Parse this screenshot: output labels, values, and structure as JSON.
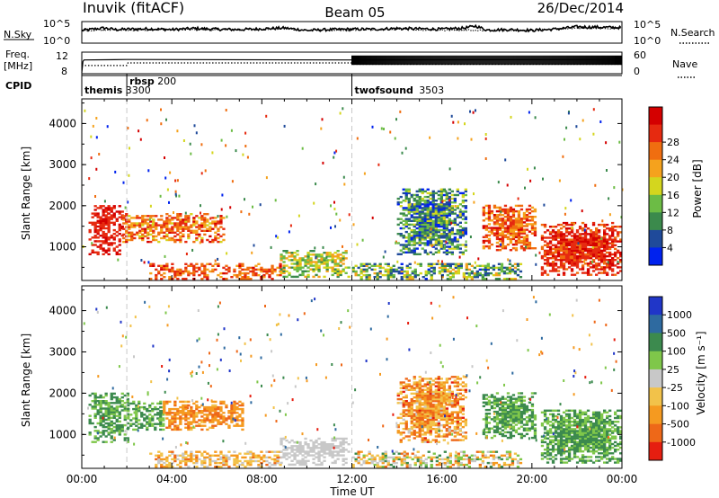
{
  "chart_data": [
    {
      "type": "line",
      "panel": "noise",
      "title": "Inuvik (fitACF)",
      "beam_label": "Beam 05",
      "date_label": "26/Dec/2014",
      "ylabel": "N.Sky",
      "ytick_left": [
        "10^5",
        "10^0"
      ],
      "ytick_right": [
        "10^5",
        "10^0"
      ],
      "right_label": "N.Search",
      "series": [
        {
          "name": "N.Sky",
          "style": "solid",
          "x_hours": [
            0,
            0.5,
            1,
            1.5,
            2,
            3,
            4,
            5,
            6,
            7,
            8,
            9,
            10,
            11,
            12,
            13,
            14,
            15,
            16,
            17,
            17.5,
            18,
            19,
            20,
            21,
            22,
            23,
            24
          ],
          "values_log10": [
            3.0,
            3.3,
            3.6,
            3.2,
            3.3,
            3.4,
            3.2,
            3.5,
            3.3,
            3.2,
            3.4,
            3.6,
            3.0,
            3.2,
            3.3,
            3.3,
            3.5,
            3.4,
            3.3,
            3.6,
            4.1,
            3.1,
            3.2,
            3.0,
            3.3,
            3.9,
            3.8,
            3.7
          ]
        },
        {
          "name": "N.Search",
          "style": "dotted",
          "x_hours": [
            0,
            1,
            2,
            4,
            6,
            8,
            9,
            10,
            12,
            14,
            16,
            18,
            20,
            22,
            24
          ],
          "values_log10": [
            2.9,
            3.2,
            3.0,
            3.2,
            3.1,
            3.2,
            3.4,
            3.0,
            3.1,
            3.3,
            3.1,
            3.0,
            3.1,
            3.5,
            3.5
          ]
        }
      ]
    },
    {
      "type": "line",
      "panel": "frequency",
      "ylabel_top": "Freq.",
      "ylabel_bottom": "[MHz]",
      "ytick_left": [
        "12",
        "8"
      ],
      "ytick_right": [
        "60",
        "0"
      ],
      "right_label": "Nave",
      "series": [
        {
          "name": "Freq",
          "style": "solid",
          "x_hours": [
            0,
            0.05,
            0.1,
            2,
            12,
            24
          ],
          "values_mhz": [
            8.0,
            10.3,
            10.6,
            10.7,
            10.6,
            10.7
          ]
        },
        {
          "name": "Nave",
          "style": "dotted",
          "x_hours": [
            0,
            2.0,
            2.05,
            12,
            12.05,
            24
          ],
          "values": [
            22,
            22,
            30,
            30,
            26,
            26
          ]
        }
      ]
    },
    {
      "type": "table",
      "panel": "cpid",
      "label": "CPID",
      "entries": [
        {
          "start_hour": 0.0,
          "name": "themis",
          "code": "3300"
        },
        {
          "start_hour": 2.0,
          "name": "rbsp",
          "code": "200"
        },
        {
          "start_hour": 12.0,
          "name": "twofsound",
          "code": "3503"
        }
      ]
    },
    {
      "type": "heatmap",
      "panel": "power",
      "ylabel": "Slant Range [km]",
      "ylim": [
        180,
        4600
      ],
      "yticks": [
        "1000",
        "2000",
        "3000",
        "4000"
      ],
      "colorbar_label": "Power [dB]",
      "colorbar_ticks": [
        "4",
        "8",
        "12",
        "16",
        "20",
        "24",
        "28"
      ],
      "colorbar_colors": [
        "#0022ee",
        "#1f4a9a",
        "#3b8a4c",
        "#6cbc45",
        "#d4d61e",
        "#f5a21d",
        "#f06e10",
        "#e62a10",
        "#d40000"
      ],
      "regions": [
        {
          "x": [
            0.3,
            1.8
          ],
          "y": [
            800,
            2000
          ],
          "level": 0.92,
          "spread": 0.08
        },
        {
          "x": [
            1.8,
            6.3
          ],
          "y": [
            1100,
            1800
          ],
          "level": 0.74,
          "spread": 0.22
        },
        {
          "x": [
            3.0,
            8.8
          ],
          "y": [
            200,
            600
          ],
          "level": 0.78,
          "spread": 0.18
        },
        {
          "x": [
            8.8,
            11.8
          ],
          "y": [
            250,
            900
          ],
          "level": 0.45,
          "spread": 0.22
        },
        {
          "x": [
            12.0,
            19.5
          ],
          "y": [
            200,
            600
          ],
          "level": 0.35,
          "spread": 0.3
        },
        {
          "x": [
            14.0,
            17.0
          ],
          "y": [
            800,
            2400
          ],
          "level": 0.25,
          "spread": 0.25
        },
        {
          "x": [
            17.8,
            20.2
          ],
          "y": [
            900,
            2000
          ],
          "level": 0.78,
          "spread": 0.18
        },
        {
          "x": [
            20.4,
            23.9
          ],
          "y": [
            300,
            1600
          ],
          "level": 0.88,
          "spread": 0.12
        }
      ]
    },
    {
      "type": "heatmap",
      "panel": "velocity",
      "ylabel": "Slant Range [km]",
      "ylim": [
        180,
        4600
      ],
      "yticks": [
        "1000",
        "2000",
        "3000",
        "4000"
      ],
      "xlabel": "Time UT",
      "xtick_labels": [
        "00:00",
        "04:00",
        "08:00",
        "12:00",
        "16:00",
        "20:00",
        "00:00"
      ],
      "colorbar_label": "Velocity [m s⁻¹]",
      "colorbar_ticks": [
        "1000",
        "500",
        "100",
        "25",
        "-25",
        "-100",
        "-500",
        "-1000"
      ],
      "colorbar_colors": [
        "#2036c8",
        "#2e6aa0",
        "#3c8a4e",
        "#7fc74a",
        "#c8c8c8",
        "#f2c24a",
        "#f59a20",
        "#ee6818",
        "#e61e10"
      ],
      "regions": [
        {
          "x": [
            0.3,
            2.0
          ],
          "y": [
            800,
            2000
          ],
          "level": 0.3,
          "spread": 0.08
        },
        {
          "x": [
            2.0,
            3.6
          ],
          "y": [
            1100,
            1800
          ],
          "level": 0.3,
          "spread": 0.08
        },
        {
          "x": [
            3.6,
            7.2
          ],
          "y": [
            1100,
            1800
          ],
          "level": 0.78,
          "spread": 0.1
        },
        {
          "x": [
            3.0,
            8.8
          ],
          "y": [
            200,
            600
          ],
          "level": 0.65,
          "spread": 0.2
        },
        {
          "x": [
            8.8,
            11.8
          ],
          "y": [
            250,
            900
          ],
          "level": 0.5,
          "spread": 0.05
        },
        {
          "x": [
            12.0,
            19.5
          ],
          "y": [
            200,
            600
          ],
          "level": 0.55,
          "spread": 0.3
        },
        {
          "x": [
            14.0,
            17.0
          ],
          "y": [
            800,
            2400
          ],
          "level": 0.75,
          "spread": 0.2
        },
        {
          "x": [
            17.8,
            20.2
          ],
          "y": [
            900,
            2000
          ],
          "level": 0.3,
          "spread": 0.08
        },
        {
          "x": [
            20.4,
            23.9
          ],
          "y": [
            300,
            1600
          ],
          "level": 0.3,
          "spread": 0.1
        }
      ]
    }
  ]
}
